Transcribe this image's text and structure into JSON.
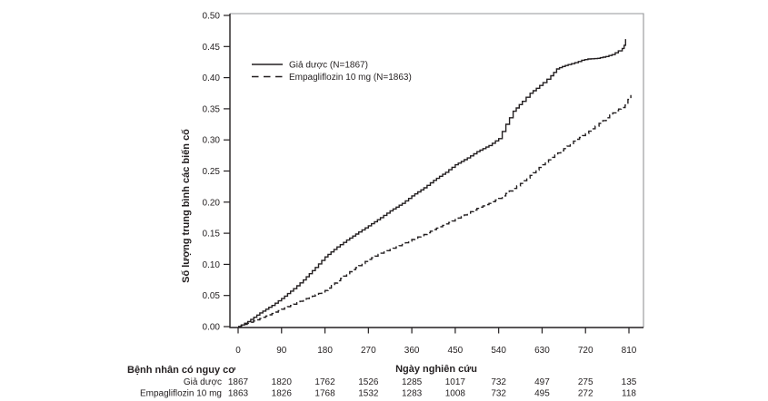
{
  "chart_data": {
    "type": "line",
    "title": "",
    "xlabel": "Ngày nghiên cứu",
    "ylabel": "Số lượng trung bình các biến cố",
    "xlim": [
      0,
      810
    ],
    "ylim": [
      0,
      0.5
    ],
    "x_ticks": [
      0,
      90,
      180,
      270,
      360,
      450,
      540,
      630,
      720,
      810
    ],
    "y_tick_labels": [
      "0.00",
      "0.05",
      "0.10",
      "0.15",
      "0.20",
      "0.25",
      "0.30",
      "0.35",
      "0.40",
      "0.45",
      "0.50"
    ],
    "grid": false,
    "legend_position": "inside-top-left",
    "line_color": "#231f20",
    "box_border_color": "#939598",
    "series": [
      {
        "name": "Giả dược (N=1867)",
        "style": "solid",
        "points": [
          [
            0,
            0
          ],
          [
            20,
            0.008
          ],
          [
            45,
            0.022
          ],
          [
            70,
            0.034
          ],
          [
            90,
            0.045
          ],
          [
            115,
            0.061
          ],
          [
            135,
            0.075
          ],
          [
            160,
            0.095
          ],
          [
            180,
            0.112
          ],
          [
            205,
            0.128
          ],
          [
            225,
            0.139
          ],
          [
            250,
            0.152
          ],
          [
            270,
            0.162
          ],
          [
            295,
            0.175
          ],
          [
            315,
            0.186
          ],
          [
            340,
            0.198
          ],
          [
            360,
            0.21
          ],
          [
            385,
            0.223
          ],
          [
            405,
            0.235
          ],
          [
            430,
            0.248
          ],
          [
            450,
            0.26
          ],
          [
            475,
            0.271
          ],
          [
            495,
            0.281
          ],
          [
            520,
            0.291
          ],
          [
            540,
            0.302
          ],
          [
            555,
            0.325
          ],
          [
            570,
            0.346
          ],
          [
            589,
            0.362
          ],
          [
            605,
            0.375
          ],
          [
            618,
            0.383
          ],
          [
            632,
            0.392
          ],
          [
            648,
            0.403
          ],
          [
            660,
            0.414
          ],
          [
            672,
            0.418
          ],
          [
            684,
            0.421
          ],
          [
            698,
            0.424
          ],
          [
            712,
            0.428
          ],
          [
            725,
            0.43
          ],
          [
            745,
            0.431
          ],
          [
            762,
            0.434
          ],
          [
            775,
            0.437
          ],
          [
            788,
            0.443
          ],
          [
            796,
            0.447
          ],
          [
            800,
            0.452
          ],
          [
            803,
            0.462
          ]
        ]
      },
      {
        "name": "Empagliflozin 10 mg (N=1863)",
        "style": "dashed",
        "points": [
          [
            0,
            0
          ],
          [
            25,
            0.007
          ],
          [
            45,
            0.013
          ],
          [
            70,
            0.021
          ],
          [
            90,
            0.028
          ],
          [
            115,
            0.036
          ],
          [
            135,
            0.043
          ],
          [
            160,
            0.051
          ],
          [
            180,
            0.058
          ],
          [
            200,
            0.07
          ],
          [
            225,
            0.085
          ],
          [
            250,
            0.098
          ],
          [
            270,
            0.108
          ],
          [
            290,
            0.116
          ],
          [
            315,
            0.124
          ],
          [
            340,
            0.132
          ],
          [
            360,
            0.14
          ],
          [
            385,
            0.148
          ],
          [
            405,
            0.156
          ],
          [
            430,
            0.165
          ],
          [
            450,
            0.172
          ],
          [
            475,
            0.182
          ],
          [
            495,
            0.19
          ],
          [
            520,
            0.198
          ],
          [
            540,
            0.206
          ],
          [
            562,
            0.218
          ],
          [
            585,
            0.23
          ],
          [
            605,
            0.243
          ],
          [
            630,
            0.26
          ],
          [
            650,
            0.272
          ],
          [
            675,
            0.286
          ],
          [
            695,
            0.298
          ],
          [
            720,
            0.31
          ],
          [
            740,
            0.322
          ],
          [
            756,
            0.331
          ],
          [
            770,
            0.34
          ],
          [
            783,
            0.347
          ],
          [
            794,
            0.352
          ],
          [
            802,
            0.356
          ],
          [
            808,
            0.365
          ],
          [
            814,
            0.372
          ]
        ]
      }
    ],
    "risk_table": {
      "title": "Bệnh nhân có nguy cơ",
      "rows": [
        {
          "label": "Giả dược",
          "values": [
            1867,
            1820,
            1762,
            1526,
            1285,
            1017,
            732,
            497,
            275,
            135
          ]
        },
        {
          "label": "Empagliflozin 10 mg",
          "values": [
            1863,
            1826,
            1768,
            1532,
            1283,
            1008,
            732,
            495,
            272,
            118
          ]
        }
      ]
    }
  }
}
